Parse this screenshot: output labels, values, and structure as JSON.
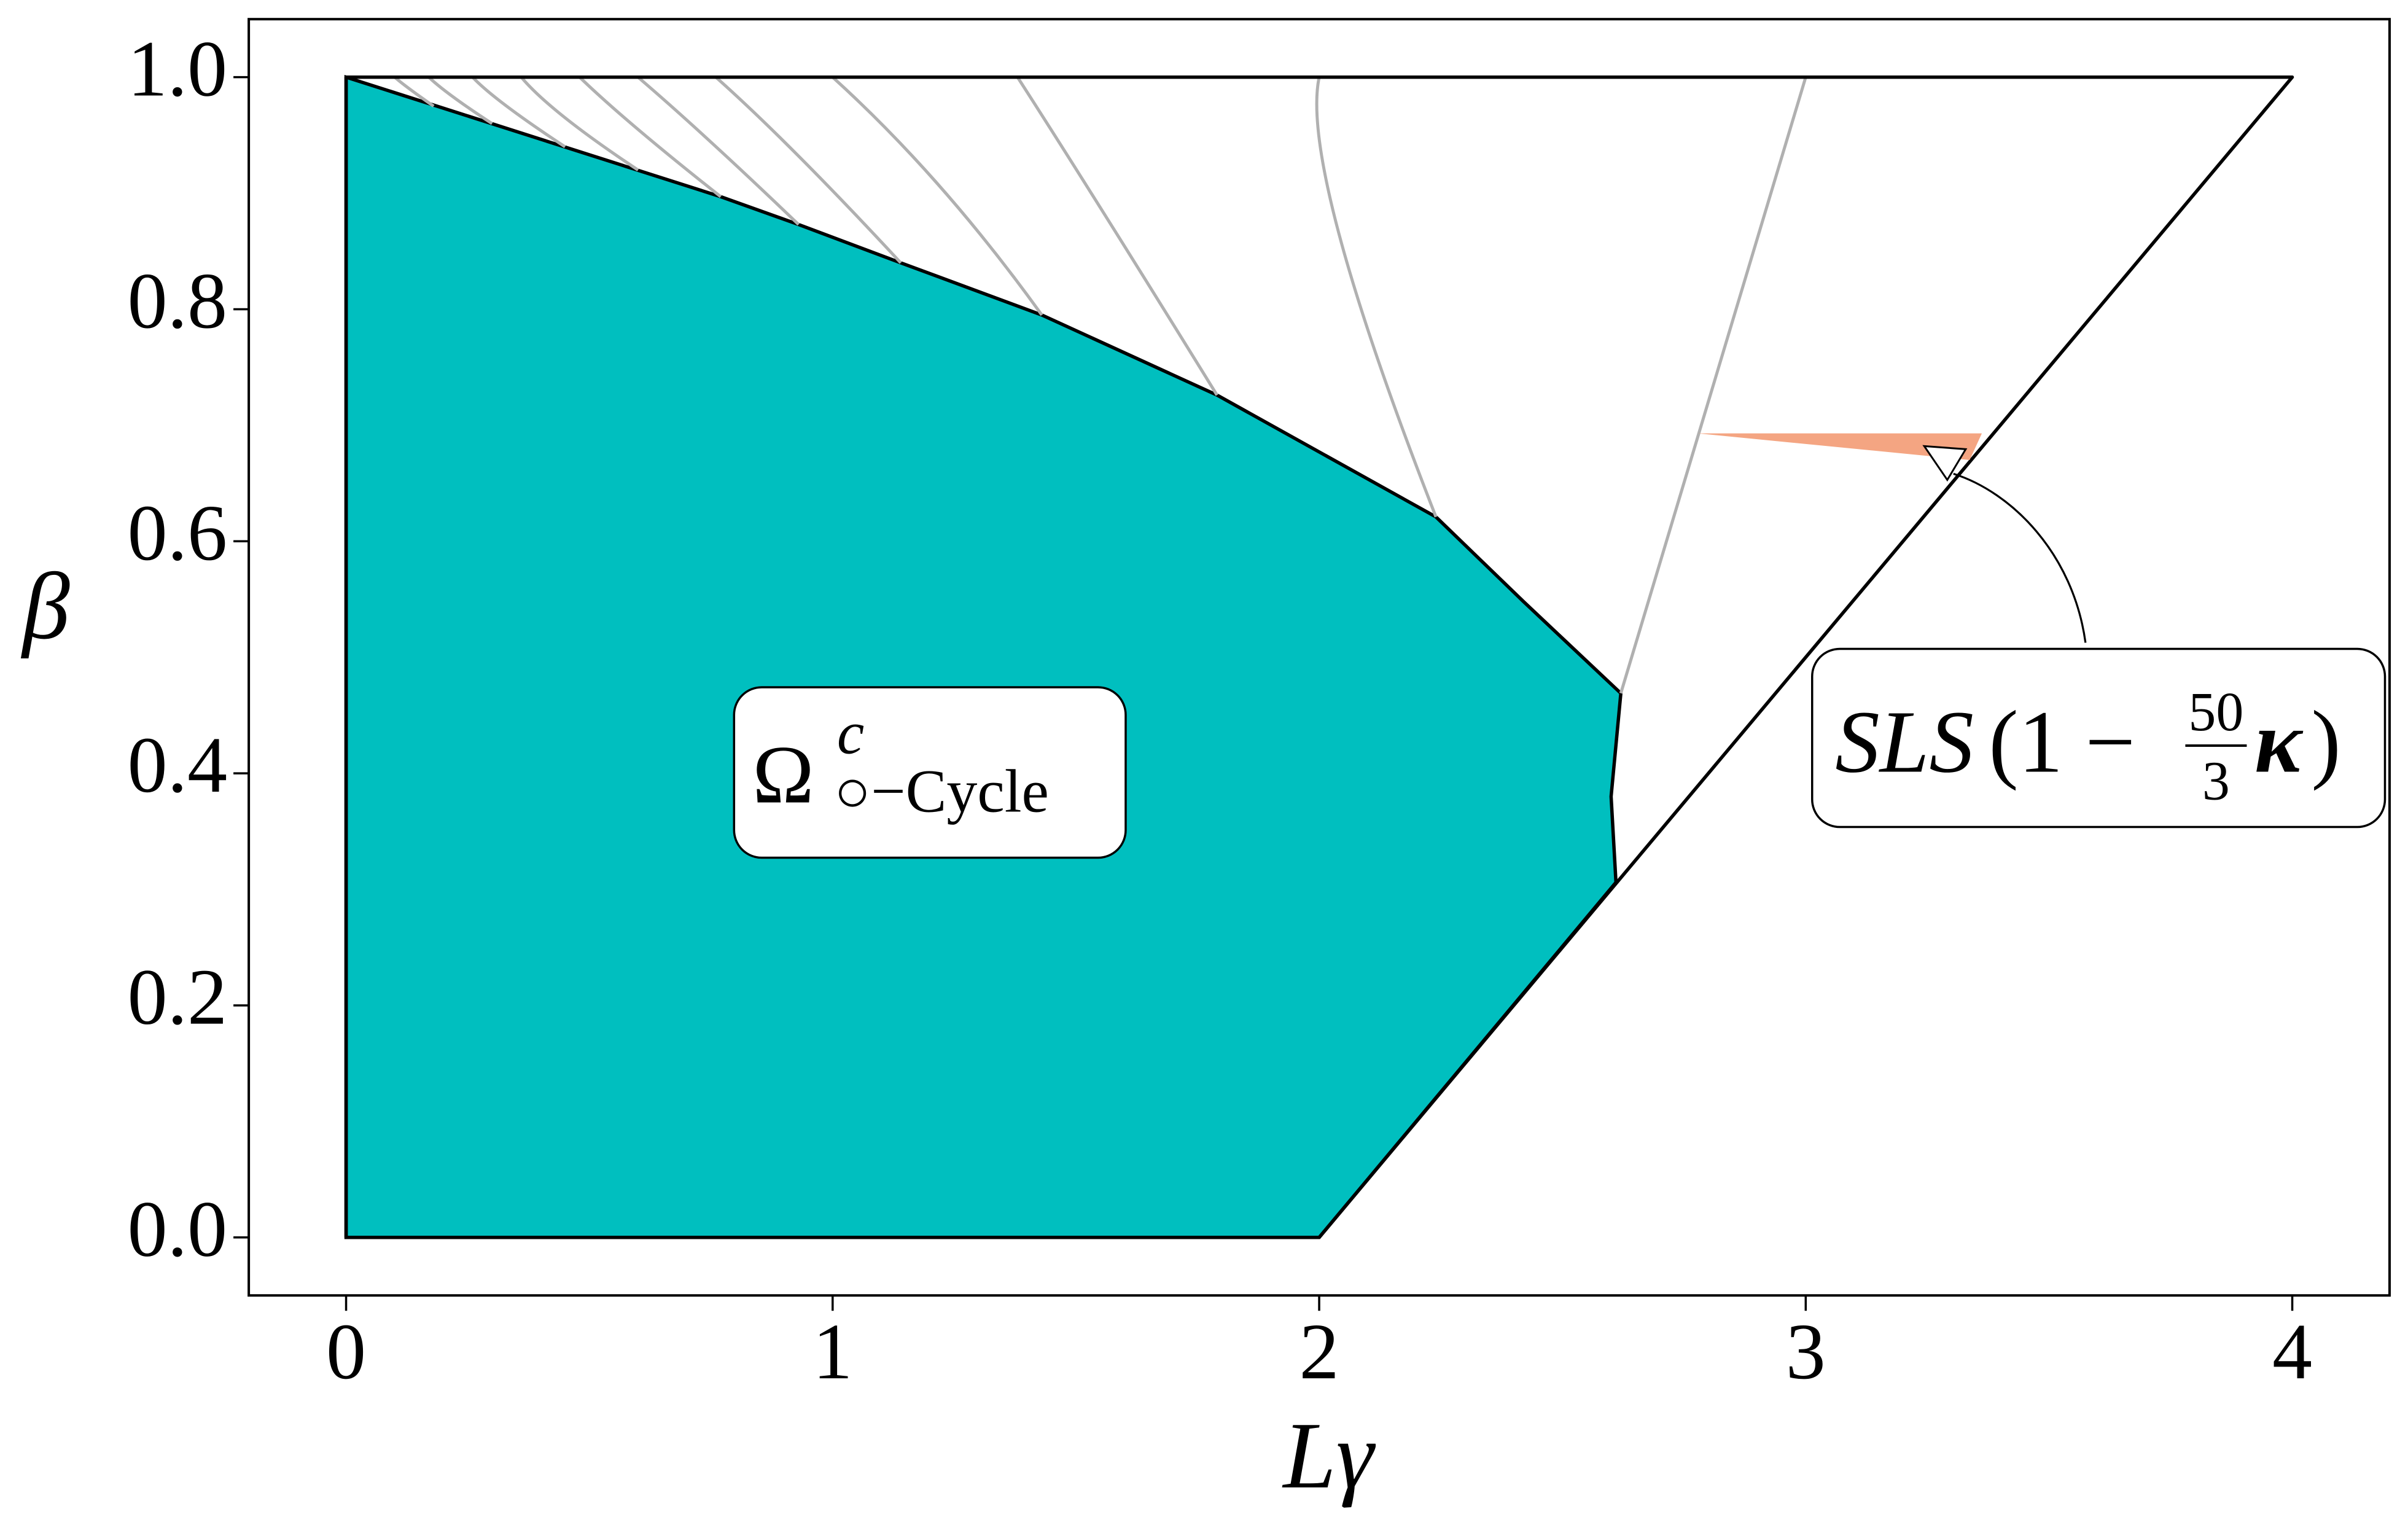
{
  "chart_data": {
    "type": "region",
    "xlabel": "Lγ",
    "ylabel": "β",
    "xlim": [
      -0.2,
      4.2
    ],
    "ylim": [
      -0.05,
      1.05
    ],
    "xticks": [
      0,
      1,
      2,
      3,
      4
    ],
    "yticks": [
      {
        "value": 0,
        "label": "0.0"
      },
      {
        "value": 0.2,
        "label": "0.2"
      },
      {
        "value": 0.4,
        "label": "0.4"
      },
      {
        "value": 0.6,
        "label": "0.6"
      },
      {
        "value": 0.8,
        "label": "0.8"
      },
      {
        "value": 1,
        "label": "1.0"
      }
    ],
    "region": {
      "color": "#00bfbf",
      "x": [
        0,
        0,
        0.77,
        0.93,
        1.14,
        1.43,
        1.79,
        2.24,
        2.42,
        2.62,
        2.6,
        2.61,
        2
      ],
      "y": [
        0,
        1,
        0.897,
        0.873,
        0.84,
        0.795,
        0.726,
        0.621,
        0.548,
        0.469,
        0.38,
        0.306,
        0
      ]
    },
    "boundary": {
      "x": [
        0,
        2,
        4,
        0,
        0
      ],
      "y": [
        0,
        0,
        1,
        1,
        0
      ]
    },
    "curve_color": "#b0b0b0",
    "curves": [
      {
        "x": [
          2.62,
          2.79,
          3.0
        ],
        "y": [
          0.469,
          0.706,
          1
        ]
      },
      {
        "x": [
          2.24,
          2.04,
          2.0
        ],
        "y": [
          0.621,
          0.866,
          1
        ]
      },
      {
        "x": [
          1.79,
          1.56,
          1.38
        ],
        "y": [
          0.726,
          0.881,
          1
        ]
      },
      {
        "x": [
          1.43,
          1.22,
          1.0
        ],
        "y": [
          0.795,
          0.906,
          1
        ]
      },
      {
        "x": [
          1.14,
          0.93,
          0.76
        ],
        "y": [
          0.84,
          0.932,
          1
        ]
      },
      {
        "x": [
          0.93,
          0.75,
          0.6
        ],
        "y": [
          0.873,
          0.944,
          1
        ]
      },
      {
        "x": [
          0.77,
          0.6,
          0.48
        ],
        "y": [
          0.897,
          0.955,
          1
        ]
      },
      {
        "x": [
          0.6,
          0.45,
          0.36
        ],
        "y": [
          0.92,
          0.965,
          1
        ]
      },
      {
        "x": [
          0.45,
          0.33,
          0.26
        ],
        "y": [
          0.94,
          0.975,
          1
        ]
      },
      {
        "x": [
          0.3,
          0.22,
          0.17
        ],
        "y": [
          0.96,
          0.983,
          1
        ]
      },
      {
        "x": [
          0.18,
          0.13,
          0.1
        ],
        "y": [
          0.975,
          0.99,
          1
        ]
      }
    ],
    "wedge": {
      "color": "#f4a582",
      "x": [
        2.778,
        3.362,
        3.337
      ],
      "y": [
        0.693,
        0.693,
        0.67
      ]
    },
    "annotations": [
      {
        "base": "Ω",
        "sup": "c",
        "sub": "○−Cycle"
      },
      {
        "text": "SLS",
        "open": "(1 − ",
        "num": "50",
        "den": "3",
        "tail": "κ",
        "close": ")",
        "xy": [
          3.29,
          0.66
        ]
      }
    ]
  }
}
